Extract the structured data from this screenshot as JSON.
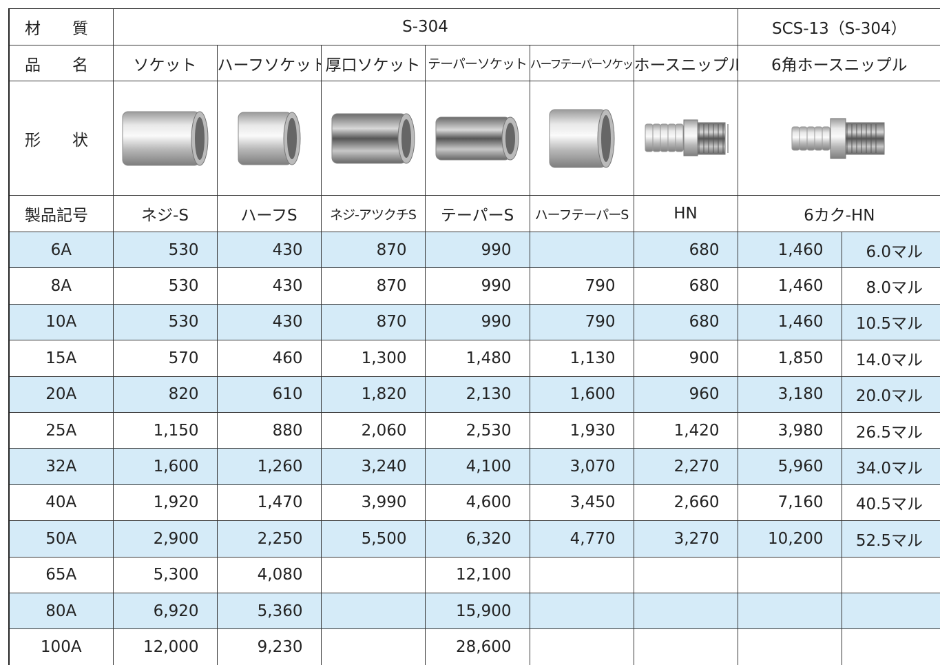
{
  "table": {
    "material": {
      "label": "材　　質",
      "groups": [
        "S-304",
        "SCS-13（S-304）"
      ]
    },
    "names": {
      "label": "品　　名",
      "items": [
        "ソケット",
        "ハーフソケット",
        "厚口ソケット",
        "テーパーソケット",
        "ハーフテーパーソケット",
        "ホースニップル",
        "6角ホースニップル"
      ]
    },
    "shape": {
      "label": "形　　状"
    },
    "codes": {
      "label": "製品記号",
      "items": [
        "ネジ-S",
        "ハーフS",
        "ネジ-アツクチS",
        "テーパーS",
        "ハーフテーパーS",
        "HN",
        "6カク-HN"
      ]
    },
    "rows": [
      [
        "6A",
        "530",
        "430",
        "870",
        "990",
        null,
        "680",
        "1,460",
        "6.0マル"
      ],
      [
        "8A",
        "530",
        "430",
        "870",
        "990",
        "790",
        "680",
        "1,460",
        "8.0マル"
      ],
      [
        "10A",
        "530",
        "430",
        "870",
        "990",
        "790",
        "680",
        "1,460",
        "10.5マル"
      ],
      [
        "15A",
        "570",
        "460",
        "1,300",
        "1,480",
        "1,130",
        "900",
        "1,850",
        "14.0マル"
      ],
      [
        "20A",
        "820",
        "610",
        "1,820",
        "2,130",
        "1,600",
        "960",
        "3,180",
        "20.0マル"
      ],
      [
        "25A",
        "1,150",
        "880",
        "2,060",
        "2,530",
        "1,930",
        "1,420",
        "3,980",
        "26.5マル"
      ],
      [
        "32A",
        "1,600",
        "1,260",
        "3,240",
        "4,100",
        "3,070",
        "2,270",
        "5,960",
        "34.0マル"
      ],
      [
        "40A",
        "1,920",
        "1,470",
        "3,990",
        "4,600",
        "3,450",
        "2,660",
        "7,160",
        "40.5マル"
      ],
      [
        "50A",
        "2,900",
        "2,250",
        "5,500",
        "6,320",
        "4,770",
        "3,270",
        "10,200",
        "52.5マル"
      ],
      [
        "65A",
        "5,300",
        "4,080",
        null,
        "12,100",
        null,
        null,
        null,
        null
      ],
      [
        "80A",
        "6,920",
        "5,360",
        null,
        "15,900",
        null,
        null,
        null,
        null
      ],
      [
        "100A",
        "12,000",
        "9,230",
        null,
        "28,600",
        null,
        null,
        null,
        null
      ]
    ]
  }
}
